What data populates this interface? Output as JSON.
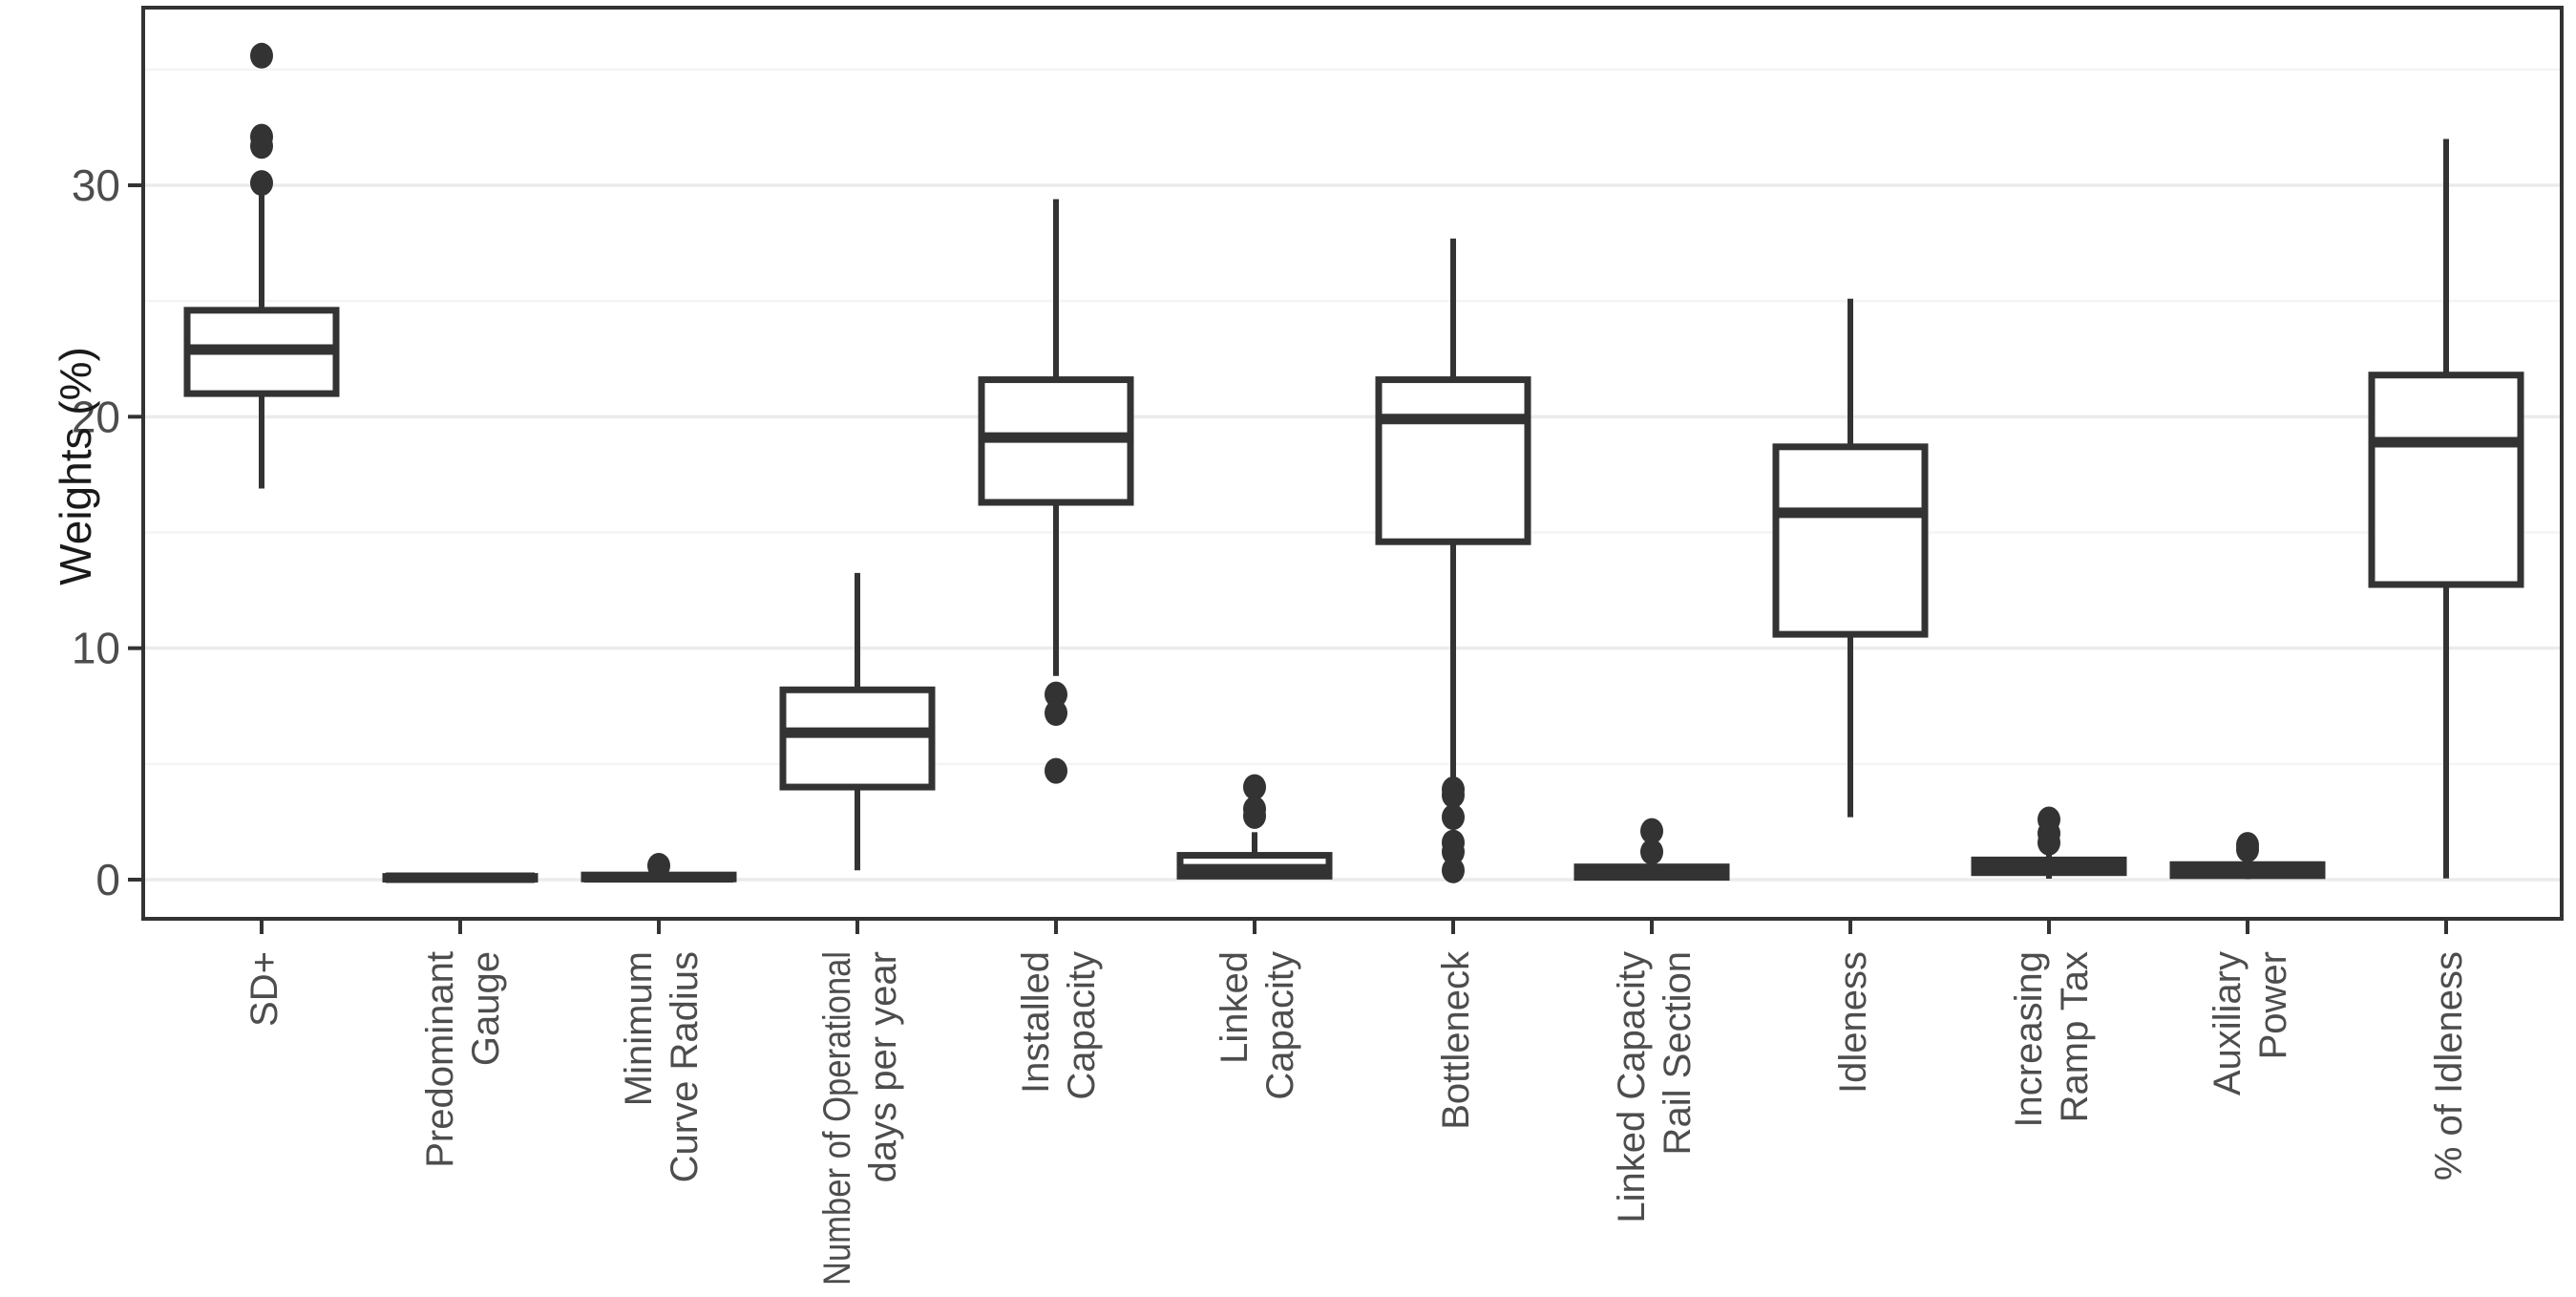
{
  "chart_data": {
    "type": "boxplot",
    "title": "",
    "xlabel": "",
    "ylabel": "Weights (%)",
    "ylim": [
      -1.7,
      37.7
    ],
    "yticks": [
      0,
      10,
      20,
      30
    ],
    "yticks_minor": [
      5,
      15,
      25,
      35
    ],
    "grid": "major+minor horizontal, panel border on, white background",
    "legend": "none",
    "colors": {
      "box_stroke": "#333333",
      "box_fill": "#ffffff",
      "outlier_fill": "#333333",
      "major_grid": "#ebebeb",
      "minor_grid": "#f4f4f4",
      "panel_border": "#333333",
      "tick_label": "#4d4d4d",
      "axis_title": "#1a1a1a",
      "background": "#ffffff"
    },
    "categories": [
      {
        "label": [
          "SD+"
        ],
        "whisker_low": 16.9,
        "q1": 21.0,
        "median": 22.9,
        "q3": 24.6,
        "whisker_high": 29.8,
        "outliers": [
          35.6,
          32.1,
          31.7,
          30.1
        ]
      },
      {
        "label": [
          "Predominant",
          "Gauge"
        ],
        "whisker_low": 0.0,
        "q1": 0.02,
        "median": 0.08,
        "q3": 0.14,
        "whisker_high": 0.16,
        "outliers": []
      },
      {
        "label": [
          "Minimum",
          "Curve Radius"
        ],
        "whisker_low": 0.0,
        "q1": 0.03,
        "median": 0.1,
        "q3": 0.2,
        "whisker_high": 0.35,
        "outliers": [
          0.6
        ]
      },
      {
        "label": [
          "Number of Operational",
          "days per year"
        ],
        "whisker_low": 0.4,
        "q1": 4.0,
        "median": 6.35,
        "q3": 8.2,
        "whisker_high": 13.25,
        "outliers": []
      },
      {
        "label": [
          "Installed",
          "Capacity"
        ],
        "whisker_low": 8.8,
        "q1": 16.3,
        "median": 19.1,
        "q3": 21.6,
        "whisker_high": 29.4,
        "outliers": [
          8.0,
          7.2,
          4.7
        ]
      },
      {
        "label": [
          "Linked",
          "Capacity"
        ],
        "whisker_low": 0.02,
        "q1": 0.15,
        "median": 0.45,
        "q3": 1.05,
        "whisker_high": 2.05,
        "outliers": [
          4.0,
          3.05,
          2.75
        ]
      },
      {
        "label": [
          "Bottleneck"
        ],
        "whisker_low": 4.3,
        "q1": 14.6,
        "median": 19.9,
        "q3": 21.6,
        "whisker_high": 27.7,
        "outliers": [
          3.9,
          3.65,
          2.7,
          1.6,
          1.2,
          0.4
        ]
      },
      {
        "label": [
          "Linked Capacity",
          "Rail Section"
        ],
        "whisker_low": 0.02,
        "q1": 0.1,
        "median": 0.3,
        "q3": 0.55,
        "whisker_high": 0.75,
        "outliers": [
          2.1,
          1.2
        ]
      },
      {
        "label": [
          "Idleness"
        ],
        "whisker_low": 2.7,
        "q1": 10.6,
        "median": 15.85,
        "q3": 18.7,
        "whisker_high": 25.1,
        "outliers": []
      },
      {
        "label": [
          "Increasing",
          "Ramp Tax"
        ],
        "whisker_low": 0.04,
        "q1": 0.3,
        "median": 0.55,
        "q3": 0.85,
        "whisker_high": 1.1,
        "outliers": [
          2.6,
          2.0,
          1.6
        ]
      },
      {
        "label": [
          "Auxiliary",
          "Power"
        ],
        "whisker_low": 0.02,
        "q1": 0.17,
        "median": 0.4,
        "q3": 0.65,
        "whisker_high": 0.85,
        "outliers": [
          1.5,
          1.3
        ]
      },
      {
        "label": [
          "% of Idleness"
        ],
        "whisker_low": 0.05,
        "q1": 12.75,
        "median": 18.9,
        "q3": 21.8,
        "whisker_high": 32.0,
        "outliers": []
      }
    ]
  }
}
